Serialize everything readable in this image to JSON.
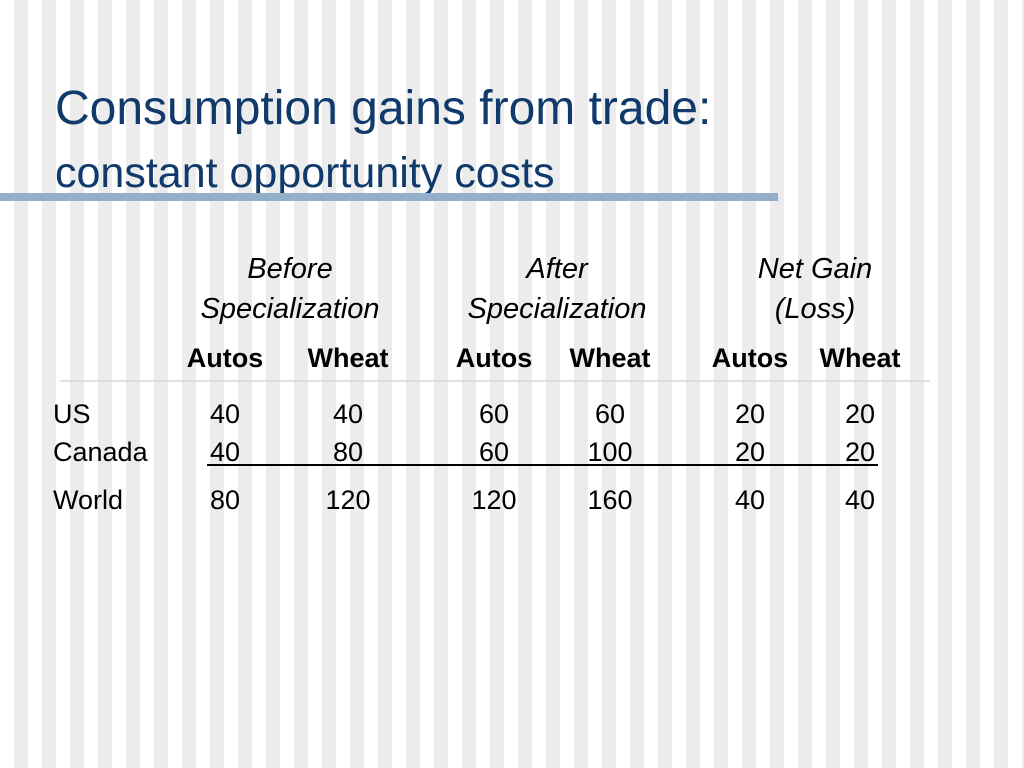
{
  "header": {
    "title": "Consumption gains from trade:",
    "subtitle": "constant opportunity costs"
  },
  "table": {
    "groups": [
      [
        "Before",
        "Specialization"
      ],
      [
        "After",
        "Specialization"
      ],
      [
        "Net Gain",
        "(Loss)"
      ]
    ],
    "columns": [
      "Autos",
      "Wheat",
      "Autos",
      "Wheat",
      "Autos",
      "Wheat"
    ],
    "rows": [
      [
        "US",
        40,
        40,
        60,
        60,
        20,
        20
      ],
      [
        "Canada",
        40,
        80,
        60,
        100,
        20,
        20
      ],
      [
        "World",
        80,
        120,
        120,
        160,
        40,
        40
      ]
    ]
  }
}
